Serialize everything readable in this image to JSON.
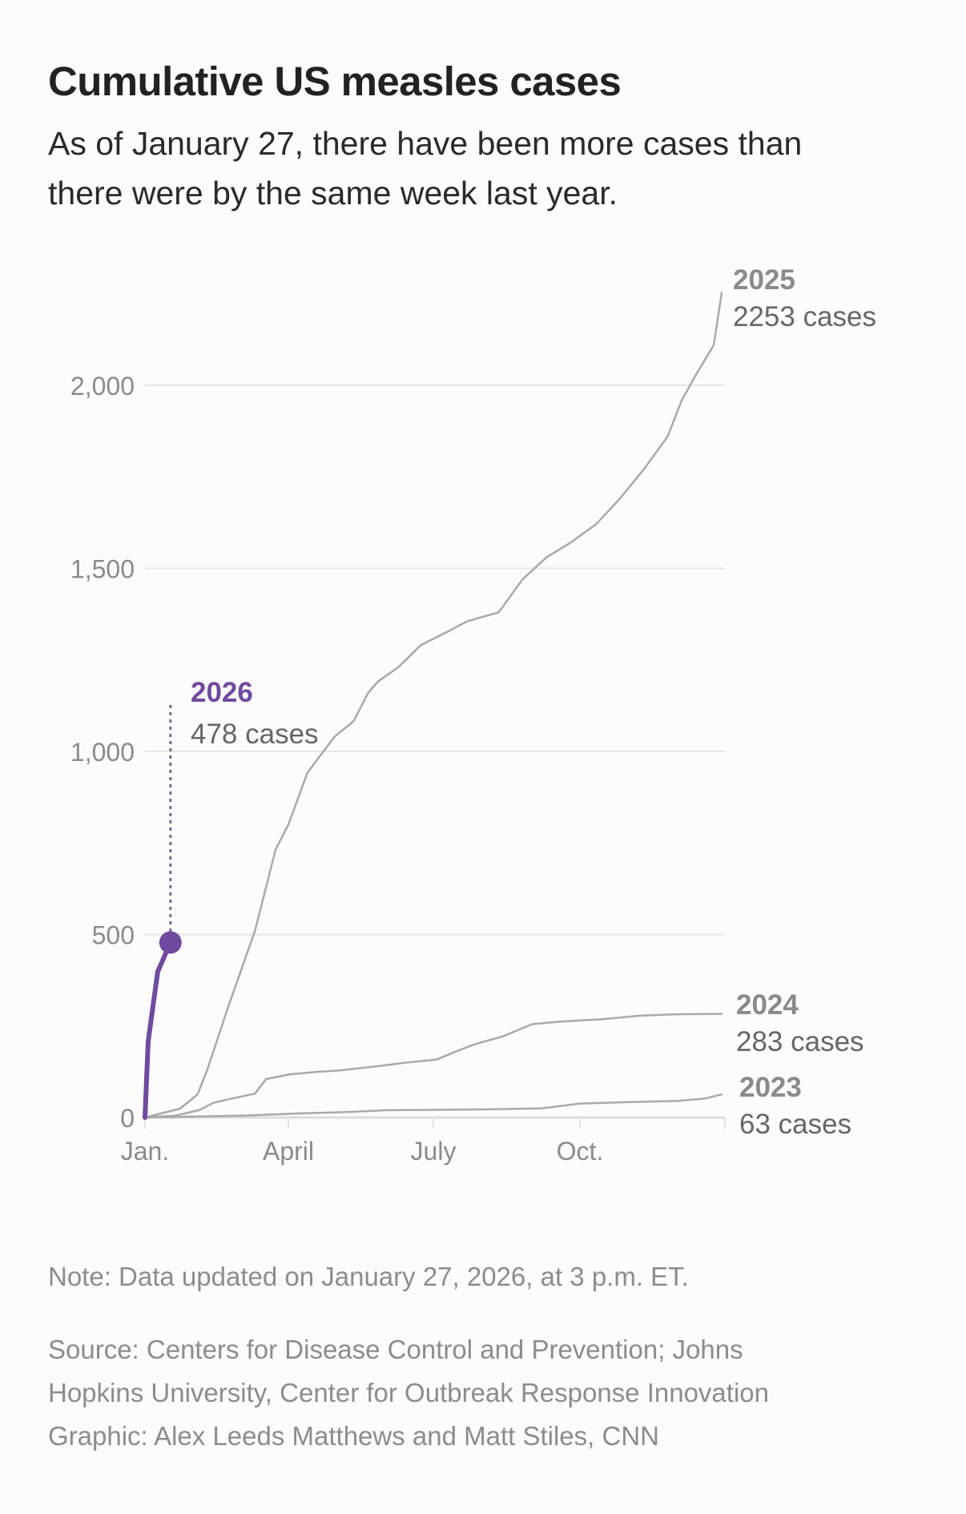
{
  "title": "Cumulative US measles cases",
  "subtitle": "As of January 27, there have been more cases than there were by the same week last year.",
  "note": "Note: Data updated on January 27, 2026, at 3 p.m. ET.",
  "source_lines": [
    "Source: Centers for Disease Control and Prevention; Johns",
    "Hopkins University, Center for Outbreak Response Innovation",
    "Graphic: Alex Leeds Matthews and Matt Stiles, CNN"
  ],
  "chart_data": {
    "type": "line",
    "title": "Cumulative US measles cases",
    "xlabel": "",
    "ylabel": "",
    "ylim": [
      0,
      2250
    ],
    "yticks": [
      0,
      500,
      1000,
      1500,
      2000
    ],
    "ytick_labels": [
      "0",
      "500",
      "1,000",
      "1,500",
      "2,000"
    ],
    "xticks": [
      "01-01",
      "04-01",
      "07-01",
      "10-01"
    ],
    "xtick_labels": [
      "Jan.",
      "April",
      "July",
      "Oct."
    ],
    "grid": true,
    "legend": "direct labels at line ends",
    "colors": {
      "highlight": "#6f4a9e",
      "other": "#a9a9a9",
      "grid": "#e6e6e6",
      "label": "#8a8a8a",
      "label_value": "#666666"
    },
    "series": [
      {
        "name": "2023",
        "label": "63 cases",
        "highlight": false,
        "x": [
          "01-01",
          "03-03",
          "04-02",
          "05-09",
          "06-02",
          "08-02",
          "09-07",
          "10-01",
          "11-01",
          "12-01",
          "12-19",
          "12-29"
        ],
        "y": [
          0,
          5,
          10,
          15,
          20,
          22,
          25,
          38,
          42,
          45,
          52,
          63
        ]
      },
      {
        "name": "2024",
        "label": "283 cases",
        "highlight": false,
        "x": [
          "01-01",
          "01-20",
          "02-04",
          "02-13",
          "02-25",
          "03-11",
          "03-18",
          "04-02",
          "04-20",
          "05-02",
          "05-27",
          "06-14",
          "07-03",
          "07-15",
          "07-27",
          "08-14",
          "09-01",
          "09-19",
          "10-14",
          "11-07",
          "12-01",
          "12-29"
        ],
        "y": [
          0,
          5,
          20,
          40,
          52,
          65,
          105,
          118,
          125,
          128,
          140,
          150,
          158,
          180,
          200,
          222,
          255,
          262,
          268,
          278,
          282,
          283
        ]
      },
      {
        "name": "2025",
        "label": "2253 cases",
        "highlight": false,
        "x": [
          "01-01",
          "01-23",
          "02-03",
          "02-09",
          "02-22",
          "03-11",
          "03-24",
          "04-01",
          "04-13",
          "04-23",
          "04-30",
          "05-12",
          "05-21",
          "05-27",
          "06-09",
          "06-23",
          "07-09",
          "07-22",
          "08-11",
          "08-26",
          "09-10",
          "09-25",
          "10-11",
          "10-26",
          "11-10",
          "11-25",
          "12-04",
          "12-13",
          "12-24",
          "12-29"
        ],
        "y": [
          0,
          24,
          63,
          129,
          299,
          509,
          732,
          800,
          942,
          1000,
          1040,
          1083,
          1160,
          1190,
          1230,
          1290,
          1325,
          1355,
          1380,
          1470,
          1530,
          1570,
          1620,
          1690,
          1770,
          1860,
          1960,
          2030,
          2110,
          2253
        ]
      },
      {
        "name": "2026",
        "label": "478 cases",
        "highlight": true,
        "x": [
          "01-01",
          "01-03",
          "01-09",
          "01-17"
        ],
        "y": [
          0,
          208,
          398,
          478
        ]
      }
    ]
  }
}
